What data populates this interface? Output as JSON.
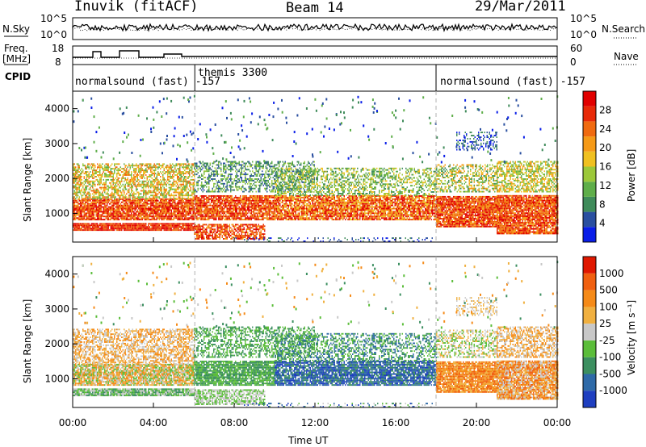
{
  "header": {
    "site": "Inuvik (fitACF)",
    "beam": "Beam 14",
    "date": "29/Mar/2011"
  },
  "panels": {
    "noise": {
      "left_label": "N.Sky",
      "left_ticks": [
        "10^5",
        "10^0"
      ],
      "right_label": "N.Search",
      "right_ticks": [
        "10^5",
        "10^0"
      ]
    },
    "freq": {
      "left_label_1": "Freq.",
      "left_label_2": "[MHz]",
      "left_ticks": [
        "18",
        "8"
      ],
      "right_label": "Nave",
      "right_ticks": [
        "60",
        "0"
      ]
    },
    "cpid": {
      "label": "CPID",
      "segments": [
        "normalsound (fast) -157",
        "themis 3300",
        "normalsound (fast) -157"
      ]
    }
  },
  "chart_data": [
    {
      "type": "heatmap",
      "title": "",
      "xlabel": "Time UT",
      "ylabel": "Slant Range [km]",
      "xticks": [
        "00:00",
        "04:00",
        "08:00",
        "12:00",
        "16:00",
        "20:00",
        "00:00"
      ],
      "xlim_hours": [
        0,
        24
      ],
      "yticks": [
        "1000",
        "2000",
        "3000",
        "4000"
      ],
      "ylim": [
        180,
        4500
      ],
      "colorbar": {
        "label": "Power [dB]",
        "ticks": [
          "4",
          "8",
          "12",
          "16",
          "20",
          "24",
          "28"
        ],
        "colors": [
          "#0a1ee8",
          "#2a4fa0",
          "#3f8b5a",
          "#5fae4a",
          "#9cc83a",
          "#f0c020",
          "#f59a18",
          "#f06a10",
          "#e82a08",
          "#e10000"
        ]
      }
    },
    {
      "type": "heatmap",
      "title": "",
      "xlabel": "Time UT",
      "ylabel": "Slant Range [km]",
      "xticks": [
        "00:00",
        "04:00",
        "08:00",
        "12:00",
        "16:00",
        "20:00",
        "00:00"
      ],
      "xlim_hours": [
        0,
        24
      ],
      "yticks": [
        "1000",
        "2000",
        "3000",
        "4000"
      ],
      "ylim": [
        180,
        4500
      ],
      "colorbar": {
        "label": "Velocity [m s⁻¹]",
        "ticks": [
          "1000",
          "500",
          "100",
          "25",
          "-25",
          "-100",
          "-500",
          "-1000"
        ],
        "colors": [
          "#1f3fc0",
          "#2f6aa8",
          "#3c8f60",
          "#5bbd3a",
          "#c8c8c8",
          "#f0b040",
          "#f58a18",
          "#f06010",
          "#e01800"
        ]
      }
    }
  ],
  "colors": {
    "frame": "#000000",
    "dash": "#b0b0b0"
  }
}
